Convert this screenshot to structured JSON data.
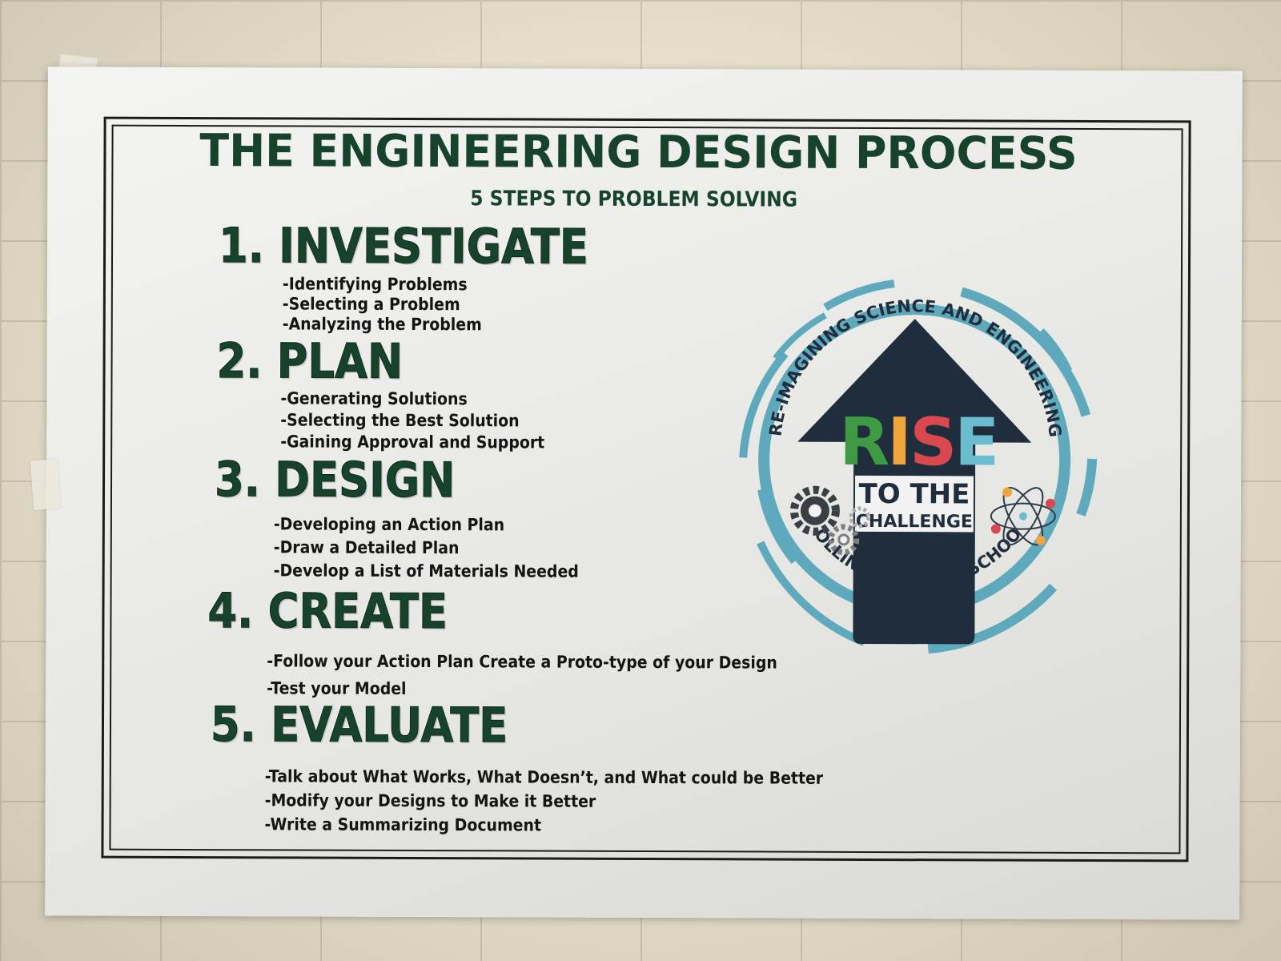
{
  "poster": {
    "title": "THE ENGINEERING DESIGN PROCESS",
    "subtitle": "5 STEPS  TO PROBLEM SOLVING",
    "steps": [
      {
        "heading": "1. INVESTIGATE",
        "items": [
          "-Identifying Problems",
          "-Selecting a Problem",
          "-Analyzing the Problem"
        ]
      },
      {
        "heading": "2. PLAN",
        "items": [
          "-Generating Solutions",
          "-Selecting the Best Solution",
          "-Gaining Approval and Support"
        ]
      },
      {
        "heading": "3. DESIGN",
        "items": [
          "-Developing an Action Plan",
          "-Draw a Detailed Plan",
          "-Develop a List of Materials Needed"
        ]
      },
      {
        "heading": "4. CREATE",
        "items": [
          "-Follow your Action Plan Create a Proto-type of your Design",
          "-Test your Model"
        ]
      },
      {
        "heading": "5. EVALUATE",
        "items": [
          "-Talk about What Works, What Doesn’t, and What could be Better",
          "-Modify your Designs to Make it Better",
          "-Write a Summarizing Document"
        ]
      }
    ]
  },
  "logo": {
    "arc_top_text": "RE-IMAGINING SCIENCE AND ENGINEERING",
    "arc_bottom_text": "COLLINS HILL HIGH SCHOOL",
    "rise_letters": [
      "R",
      "I",
      "S",
      "E"
    ],
    "line2": "TO THE",
    "line3": "CHALLENGE",
    "icons": [
      "gears-icon",
      "atom-icon",
      "arrow-up-icon"
    ]
  },
  "colors": {
    "green": "#17432c",
    "ring_blue": "#5fa9bd",
    "arrow_navy": "#1f2d3d",
    "rise_green": "#3f9a45",
    "rise_orange": "#f0a43c",
    "rise_red": "#d9474f",
    "rise_blue": "#6cbcd0"
  }
}
